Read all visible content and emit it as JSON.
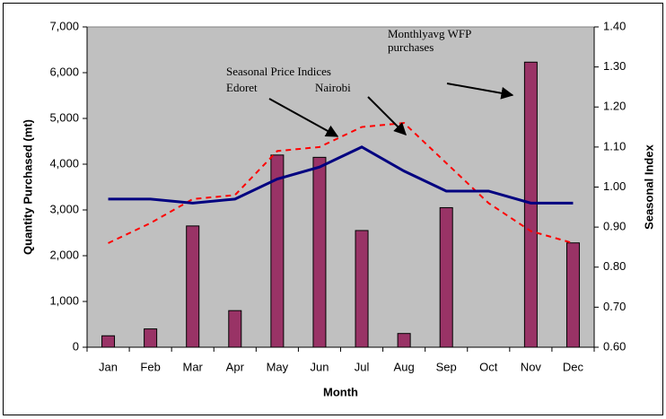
{
  "chart_data": {
    "type": "bar_line",
    "x_label": "Month",
    "y_label": "Quantity Purchased (mt)",
    "y2_label": "Seasonal Index",
    "annotations": [
      "Seasonal Price Indices"
    ],
    "categories": [
      "Jan",
      "Feb",
      "Mar",
      "Apr",
      "May",
      "Jun",
      "Jul",
      "Aug",
      "Sep",
      "Oct",
      "Nov",
      "Dec"
    ],
    "series": [
      {
        "name": "Monthlyavg WFP purchases",
        "type": "bar",
        "color": "#993366",
        "values": [
          250,
          400,
          2650,
          800,
          4200,
          4150,
          2550,
          300,
          3050,
          0,
          6230,
          2280
        ]
      },
      {
        "name": "Edoret",
        "type": "line",
        "style": "dashed",
        "axis": "y2",
        "color": "#ff0000",
        "values": [
          0.86,
          0.91,
          0.97,
          0.98,
          1.09,
          1.1,
          1.15,
          1.16,
          1.06,
          0.96,
          0.89,
          0.86
        ]
      },
      {
        "name": "Nairobi",
        "type": "line",
        "style": "solid",
        "axis": "y2",
        "color": "#000080",
        "values": [
          0.97,
          0.97,
          0.96,
          0.97,
          1.02,
          1.05,
          1.1,
          1.04,
          0.99,
          0.99,
          0.96,
          0.96
        ]
      }
    ],
    "ylim": [
      0,
      7000
    ],
    "yticks": [
      0,
      {
        "value": 1000,
        "label": "1,000"
      },
      {
        "value": 2000,
        "label": "2,000"
      },
      {
        "value": 3000,
        "label": "3,000"
      },
      {
        "value": 4000,
        "label": "4,000"
      },
      {
        "value": 5000,
        "label": "5,000"
      },
      {
        "value": 6000,
        "label": "6,000"
      },
      {
        "value": 7000,
        "label": "7,000"
      }
    ],
    "y2lim": [
      0.6,
      1.4
    ],
    "y2ticks": [
      {
        "value": 0.6,
        "label": "0.60"
      },
      {
        "value": 0.7,
        "label": "0.70"
      },
      {
        "value": 0.8,
        "label": "0.80"
      },
      {
        "value": 0.9,
        "label": "0.90"
      },
      {
        "value": 1.0,
        "label": "1.00"
      },
      {
        "value": 1.1,
        "label": "1.10"
      },
      {
        "value": 1.2,
        "label": "1.20"
      },
      {
        "value": 1.3,
        "label": "1.30"
      },
      {
        "value": 1.4,
        "label": "1.40"
      }
    ],
    "plot_background": "#c0c0c0"
  }
}
